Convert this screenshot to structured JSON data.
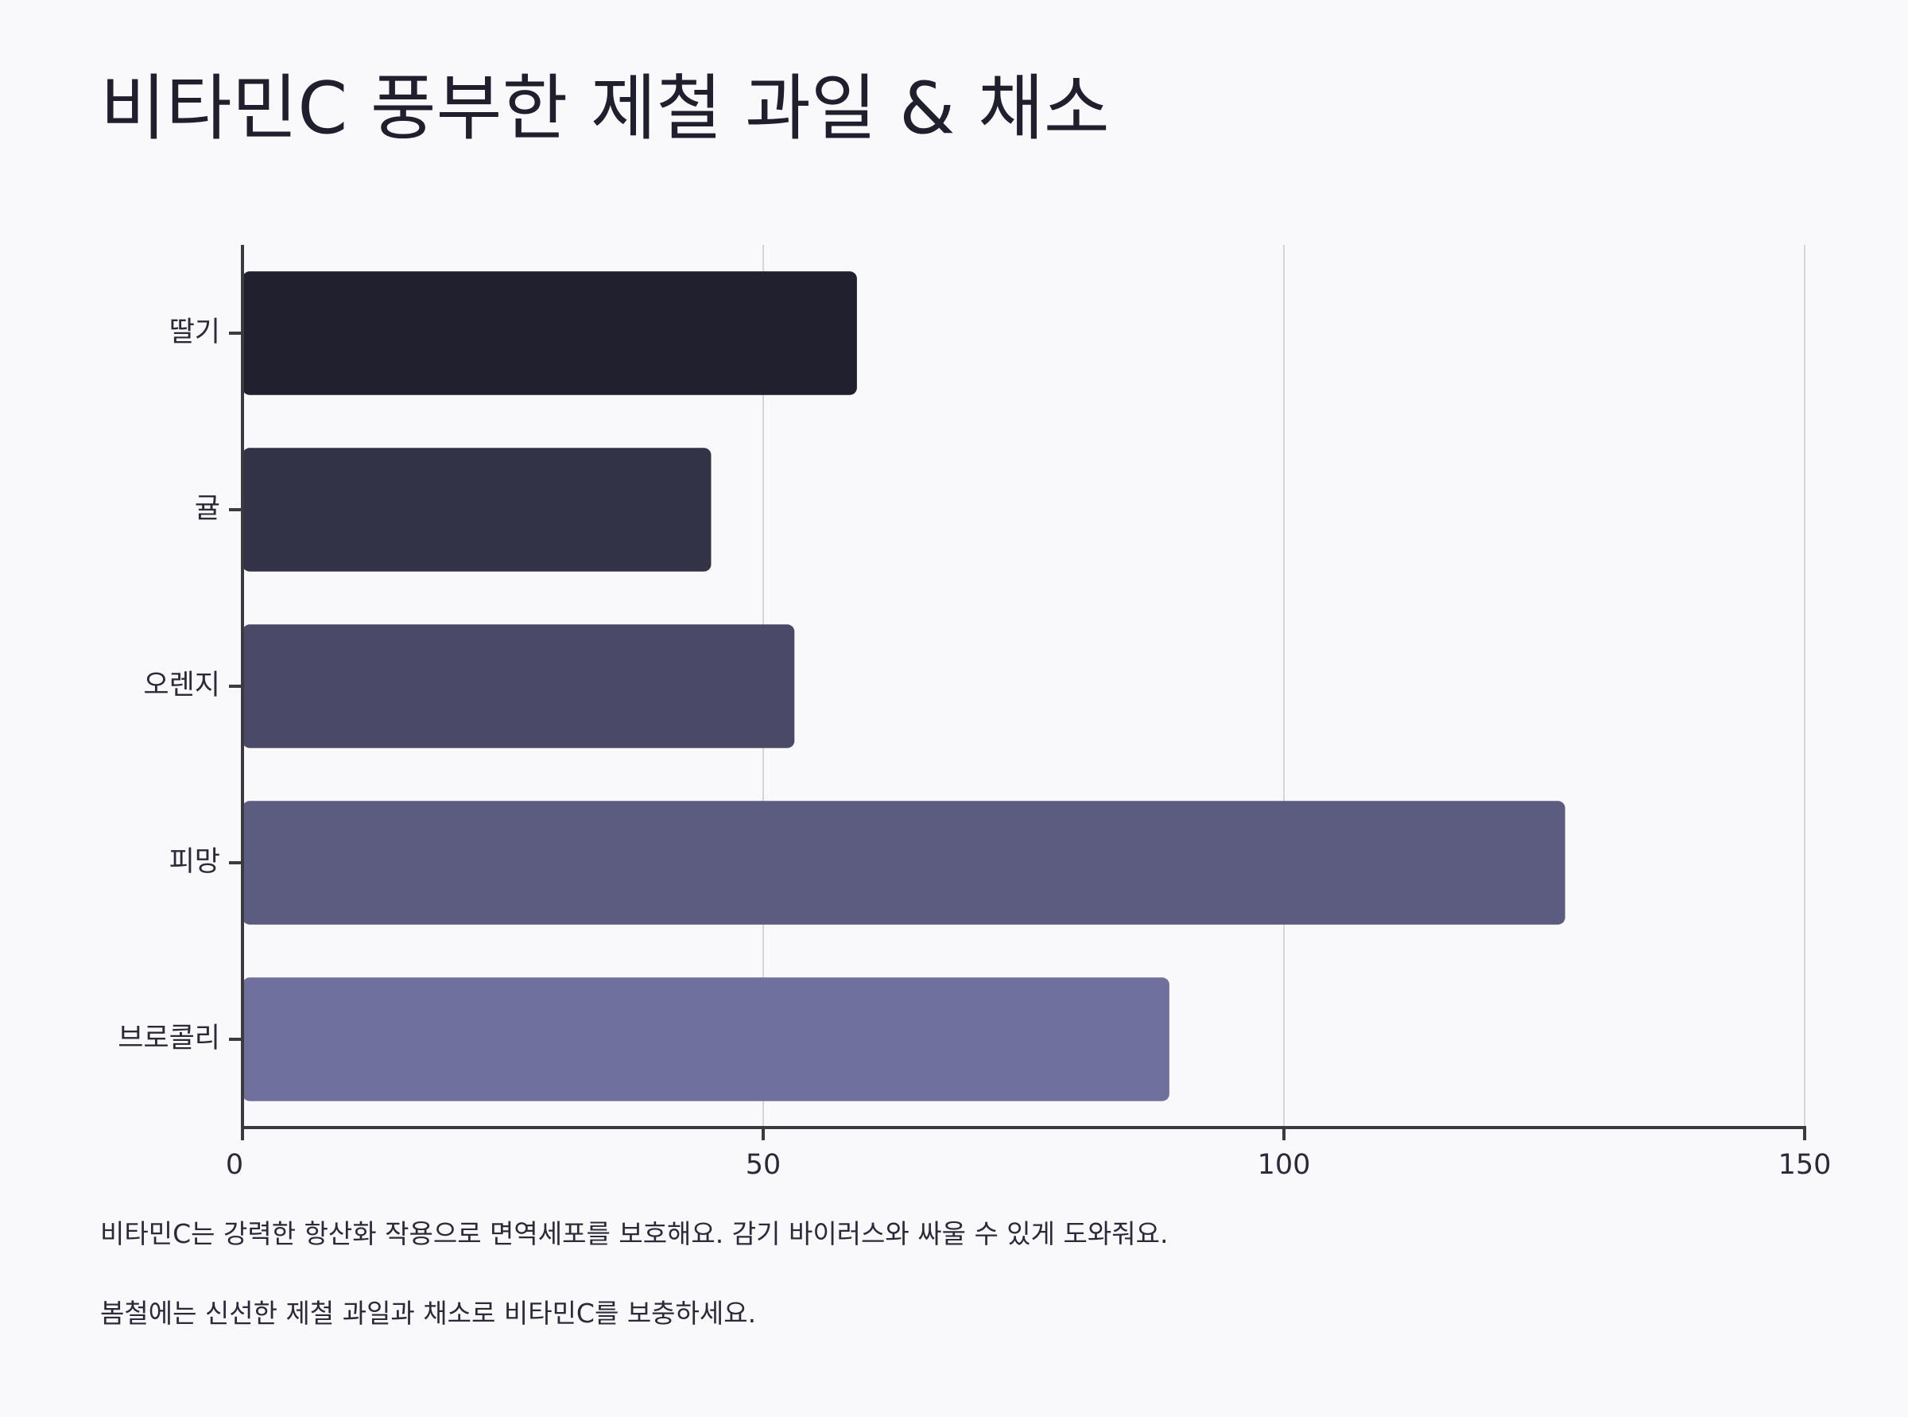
{
  "title": "비타민C 풍부한 제철 과일 & 채소",
  "notes": [
    "비타민C는 강력한 항산화 작용으로 면역세포를 보호해요. 감기 바이러스와 싸울 수 있게 도와줘요.",
    "봄철에는 신선한 제철 과일과 채소로 비타민C를 보충하세요."
  ],
  "chart_data": {
    "type": "bar",
    "orientation": "horizontal",
    "title": "비타민C 풍부한 제철 과일 & 채소",
    "xlabel": "",
    "ylabel": "",
    "categories": [
      "딸기",
      "귤",
      "오렌지",
      "피망",
      "브로콜리"
    ],
    "values": [
      59,
      45,
      53,
      127,
      89
    ],
    "colors": [
      "#20202f",
      "#333348",
      "#4a4a68",
      "#5c5b80",
      "#70709c"
    ],
    "xlim": [
      0,
      150
    ],
    "xticks": [
      0,
      50,
      100,
      150
    ],
    "grid": "vertical",
    "legend": "none"
  }
}
